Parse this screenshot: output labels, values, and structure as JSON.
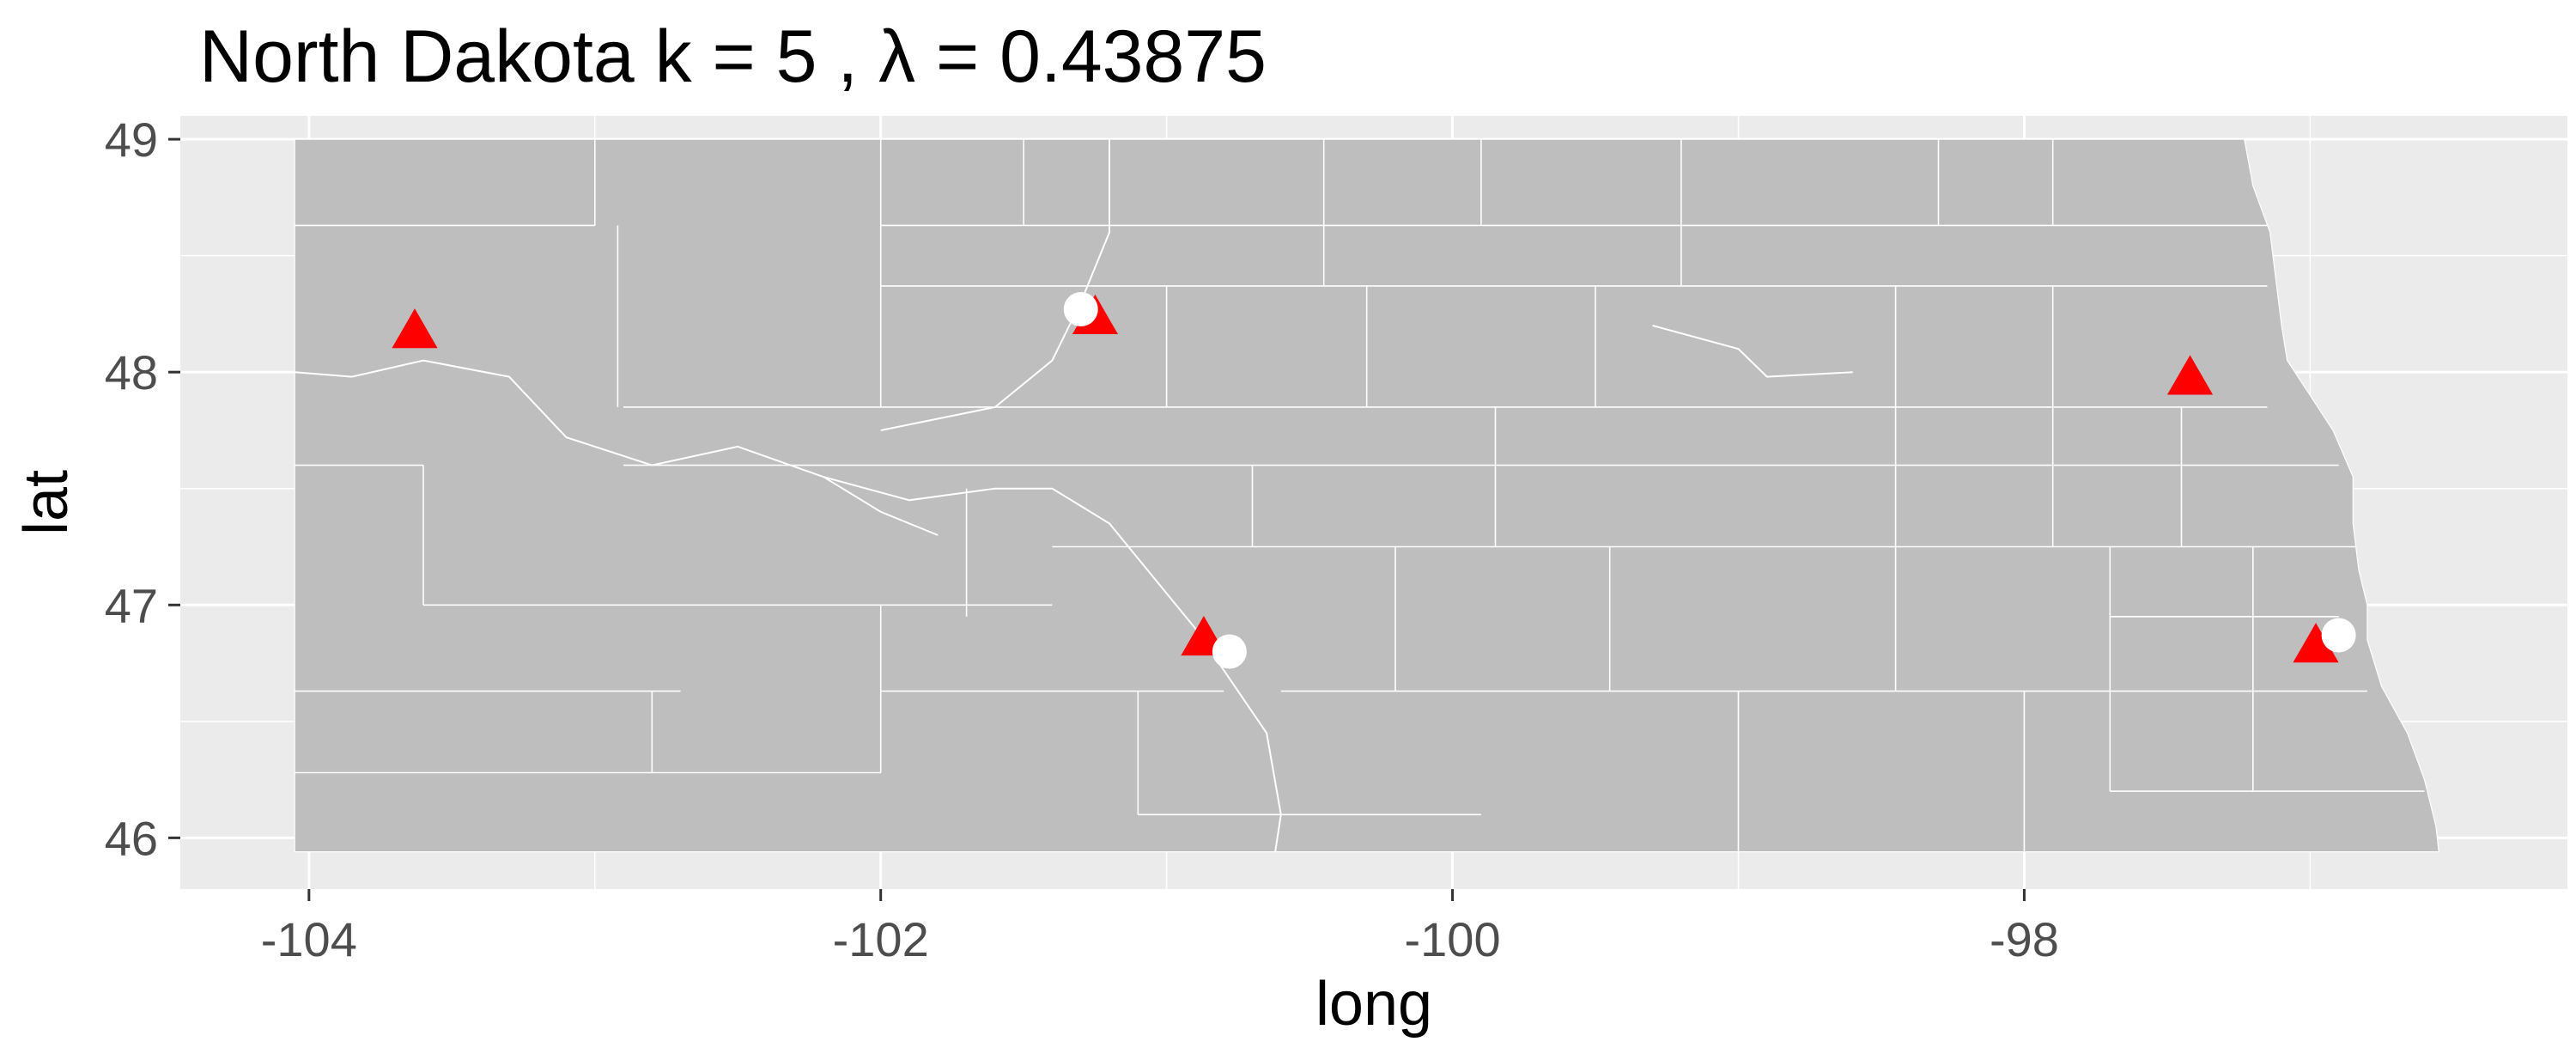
{
  "chart_data": {
    "type": "scatter",
    "title": "North Dakota  k =  5 ,  λ  =  0.43875",
    "xlabel": "long",
    "ylabel": "lat",
    "xlim": [
      -104.45,
      -96.1
    ],
    "ylim": [
      45.78,
      49.1
    ],
    "x_ticks": [
      -104,
      -102,
      -100,
      -98
    ],
    "x_tick_labels": [
      "-104",
      "-102",
      "-100",
      "-98"
    ],
    "y_ticks": [
      46,
      47,
      48,
      49
    ],
    "y_tick_labels": [
      "46",
      "47",
      "48",
      "49"
    ],
    "grid": true,
    "legend": "none",
    "colors": {
      "panel": "#ebebeb",
      "grid_major": "#ffffff",
      "state_fill": "#bebebe",
      "county_border": "#ffffff",
      "centers": "#ff0000",
      "observations": "#ffffff"
    },
    "series": [
      {
        "marker": "triangle",
        "color": "#ff0000",
        "x": [
          -103.63,
          -101.25,
          -97.42,
          -100.87,
          -96.98
        ],
        "y": [
          48.17,
          48.23,
          47.97,
          46.85,
          46.82
        ]
      },
      {
        "marker": "circle",
        "color": "#ffffff",
        "x": [
          -101.3,
          -100.78,
          -96.9
        ],
        "y": [
          48.27,
          46.8,
          46.87
        ]
      }
    ]
  }
}
